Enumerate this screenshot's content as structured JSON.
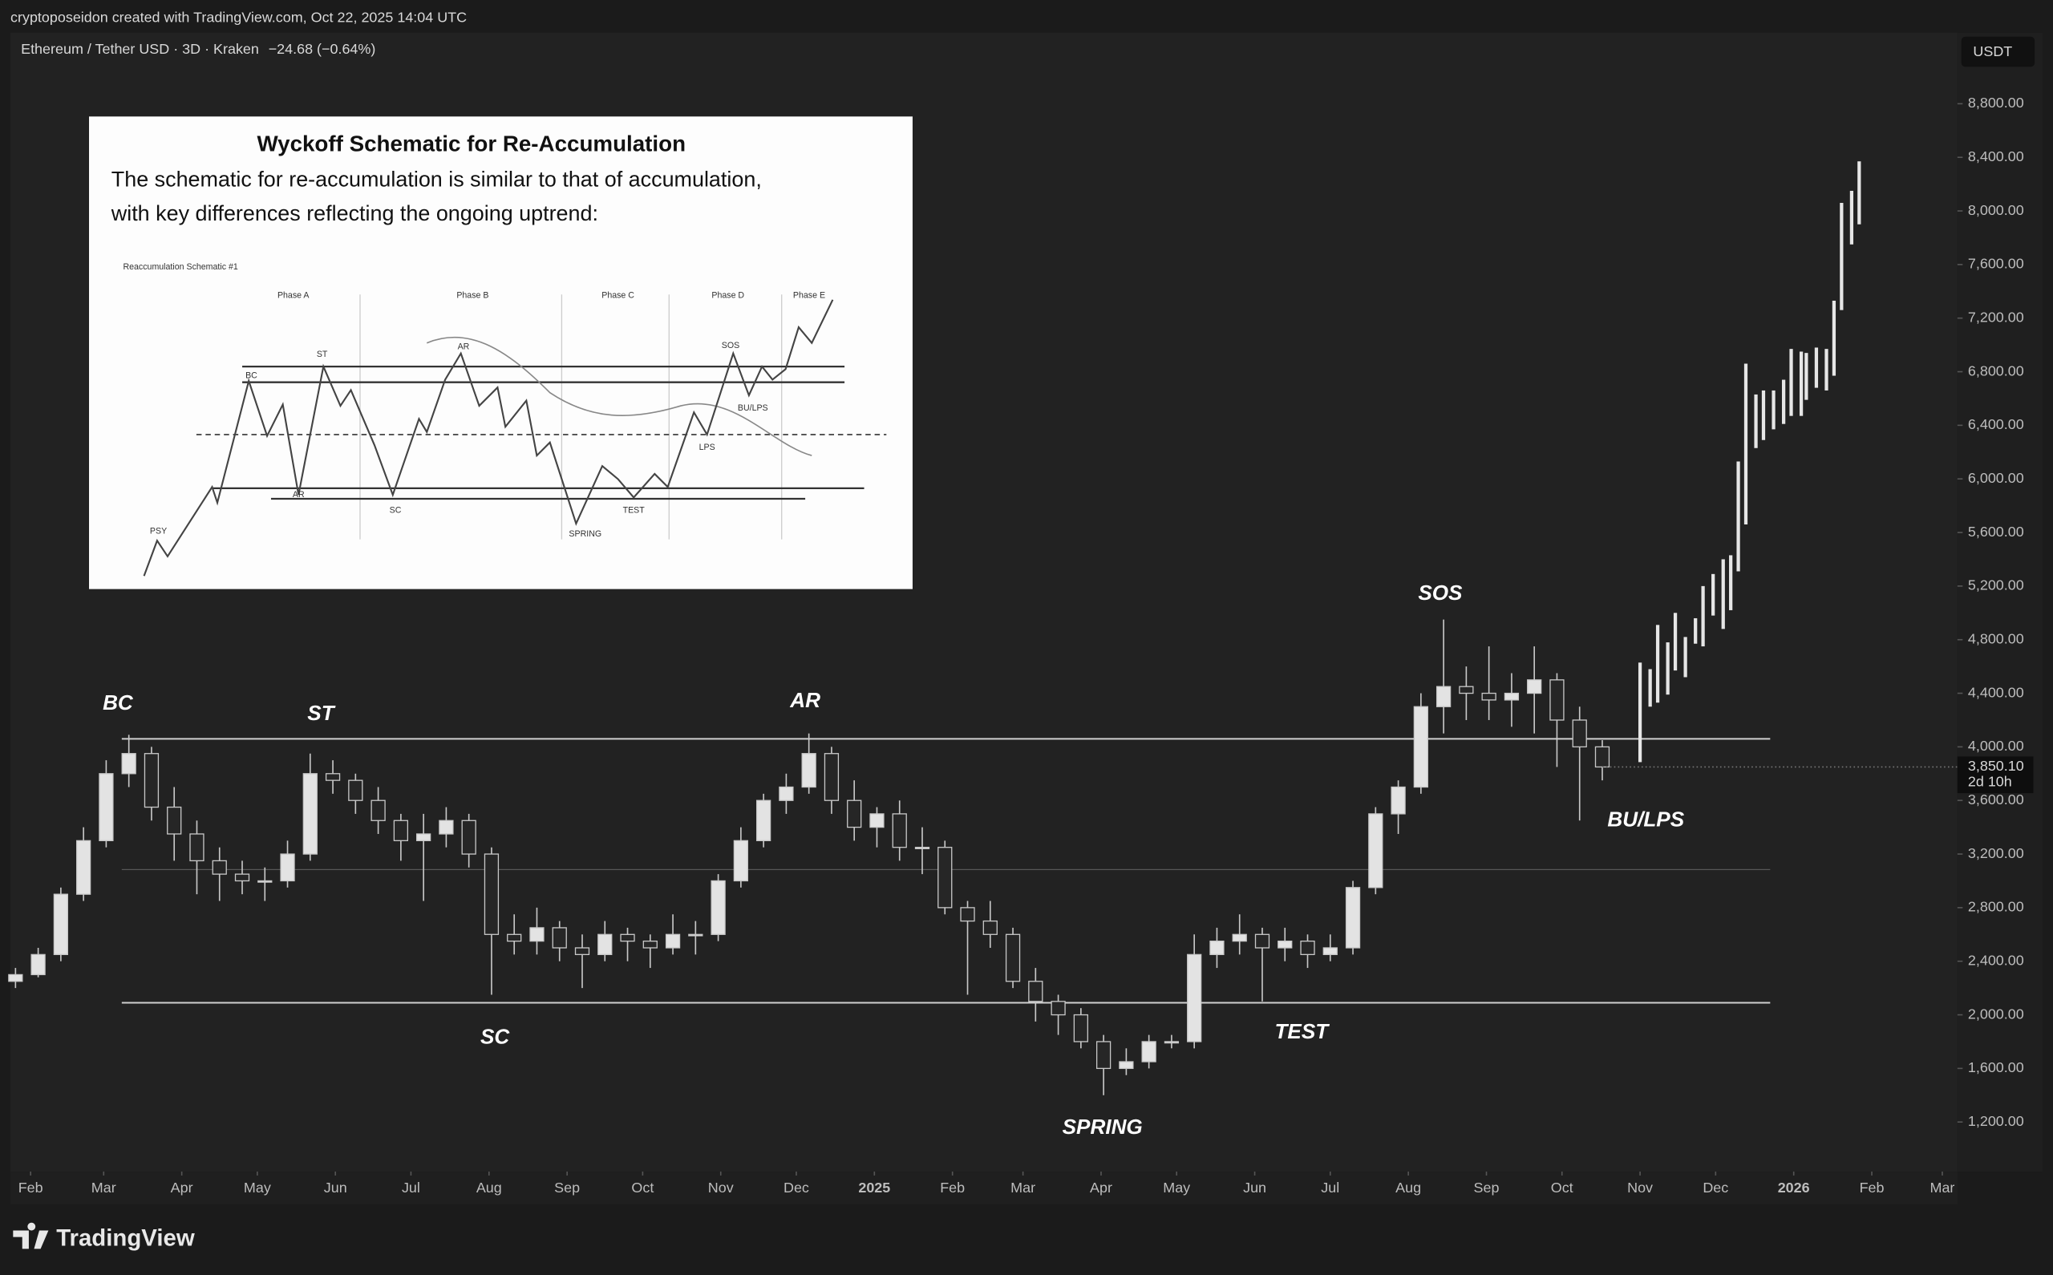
{
  "header": {
    "credit": "cryptoposeidon created with TradingView.com, Oct 22, 2025 14:04 UTC"
  },
  "symbol": {
    "name": "Ethereum / Tether USD · 3D · Kraken",
    "change": "−24.68 (−0.64%)",
    "currency": "USDT"
  },
  "chart_data": {
    "type": "candlestick",
    "x": [
      -6,
      3,
      12,
      21,
      30,
      39,
      48,
      57,
      66,
      75,
      84,
      93,
      102,
      111,
      120,
      129,
      138,
      147,
      156,
      165,
      174,
      183,
      192,
      201,
      210,
      219,
      228,
      237,
      246,
      255,
      264,
      273,
      282,
      291,
      300,
      309,
      318,
      327,
      336,
      345,
      354,
      363,
      372,
      381,
      390,
      399,
      408,
      417,
      426,
      435,
      444,
      453,
      462,
      471,
      480,
      489,
      498,
      507,
      516,
      525,
      534,
      543,
      552,
      561,
      570,
      579,
      588,
      597,
      606,
      615,
      624
    ],
    "open": [
      2250,
      2300,
      2450,
      2900,
      3300,
      3800,
      3950,
      3550,
      3350,
      3150,
      3050,
      3000,
      3000,
      3200,
      3800,
      3750,
      3600,
      3450,
      3300,
      3350,
      3450,
      3200,
      2600,
      2550,
      2650,
      2500,
      2450,
      2600,
      2550,
      2500,
      2600,
      2600,
      3000,
      3300,
      3600,
      3700,
      3950,
      3600,
      3400,
      3500,
      3250,
      3250,
      2800,
      2700,
      2600,
      2250,
      2100,
      2000,
      1800,
      1600,
      1650,
      1800,
      1800,
      2450,
      2550,
      2600,
      2500,
      2550,
      2450,
      2500,
      2950,
      3500,
      3700,
      4300,
      4450,
      4400,
      4350,
      4400,
      4500,
      4200,
      4000
    ],
    "high": [
      2350,
      2500,
      2950,
      3400,
      3900,
      4090,
      4000,
      3700,
      3450,
      3250,
      3150,
      3100,
      3300,
      3950,
      3900,
      3800,
      3700,
      3500,
      3500,
      3550,
      3500,
      3250,
      2750,
      2800,
      2700,
      2600,
      2700,
      2650,
      2600,
      2750,
      2700,
      3050,
      3400,
      3650,
      3800,
      4100,
      4000,
      3750,
      3550,
      3600,
      3400,
      3300,
      2850,
      2850,
      2650,
      2350,
      2150,
      2050,
      1850,
      1750,
      1850,
      1850,
      2600,
      2650,
      2750,
      2650,
      2650,
      2600,
      2600,
      3000,
      3550,
      3750,
      4400,
      4950,
      4600,
      4750,
      4550,
      4750,
      4550,
      4300,
      4050
    ],
    "low": [
      2200,
      2280,
      2400,
      2850,
      3250,
      3700,
      3450,
      3150,
      2900,
      2850,
      2900,
      2850,
      2950,
      3150,
      3650,
      3500,
      3350,
      3150,
      2850,
      3250,
      3100,
      2150,
      2450,
      2450,
      2400,
      2200,
      2400,
      2400,
      2350,
      2450,
      2450,
      2550,
      2950,
      3250,
      3500,
      3650,
      3500,
      3300,
      3250,
      3150,
      3050,
      2750,
      2150,
      2500,
      2200,
      1950,
      1850,
      1750,
      1400,
      1550,
      1600,
      1750,
      1750,
      2350,
      2450,
      2100,
      2400,
      2350,
      2400,
      2450,
      2900,
      3350,
      3650,
      4100,
      4200,
      4200,
      4150,
      4100,
      3850,
      3450,
      3750
    ],
    "close": [
      2300,
      2450,
      2900,
      3300,
      3800,
      3950,
      3550,
      3350,
      3150,
      3050,
      3000,
      3000,
      3200,
      3800,
      3750,
      3600,
      3450,
      3300,
      3350,
      3450,
      3200,
      2600,
      2550,
      2650,
      2500,
      2450,
      2600,
      2550,
      2500,
      2600,
      2600,
      3000,
      3300,
      3600,
      3700,
      3950,
      3600,
      3400,
      3500,
      3250,
      3250,
      2800,
      2700,
      2600,
      2250,
      2100,
      2000,
      1800,
      1600,
      1650,
      1800,
      1800,
      2450,
      2550,
      2600,
      2500,
      2550,
      2450,
      2500,
      2950,
      3500,
      3700,
      4300,
      4450,
      4400,
      4350,
      4400,
      4500,
      4200,
      4000,
      3850
    ],
    "up_color": "#e3e3e3",
    "down_color": "#262626",
    "outline_color": "#c8c8c8",
    "projection": {
      "x": [
        639,
        643,
        646,
        650,
        653,
        657,
        661,
        664,
        668,
        672,
        675,
        678,
        681,
        685,
        688,
        692,
        696,
        699,
        703,
        705,
        709,
        713,
        716,
        719,
        723,
        726
      ],
      "low": [
        3886,
        4300,
        4330,
        4390,
        4570,
        4520,
        4770,
        4750,
        4980,
        4880,
        5020,
        5310,
        5660,
        6230,
        6290,
        6370,
        6410,
        6470,
        6470,
        6590,
        6680,
        6660,
        6770,
        7260,
        7750,
        7900
      ],
      "high": [
        4629,
        4580,
        4910,
        4780,
        5000,
        4820,
        4960,
        5200,
        5290,
        5400,
        5430,
        6130,
        6860,
        6630,
        6660,
        6660,
        6740,
        6970,
        6950,
        6940,
        6980,
        6970,
        7330,
        8060,
        8150,
        8370
      ],
      "color": "#e6e6e6"
    },
    "levels": [
      4060,
      3085,
      2090
    ],
    "level_color": "#d0d0d0",
    "annotations": [
      "BC",
      "ST",
      "AR",
      "SC",
      "SPRING",
      "TEST",
      "SOS",
      "BU/LPS"
    ],
    "last_price": "3,850.10",
    "countdown": "2d 10h",
    "xlim": [
      -8,
      765
    ],
    "ylim": [
      830,
      9330
    ],
    "xticks": [
      {
        "value": 0,
        "label": "Feb"
      },
      {
        "value": 29,
        "label": "Mar"
      },
      {
        "value": 60,
        "label": "Apr"
      },
      {
        "value": 90,
        "label": "May"
      },
      {
        "value": 121,
        "label": "Jun"
      },
      {
        "value": 151,
        "label": "Jul"
      },
      {
        "value": 182,
        "label": "Aug"
      },
      {
        "value": 213,
        "label": "Sep"
      },
      {
        "value": 243,
        "label": "Oct"
      },
      {
        "value": 274,
        "label": "Nov"
      },
      {
        "value": 304,
        "label": "Dec"
      },
      {
        "value": 335,
        "label": "2025"
      },
      {
        "value": 366,
        "label": "Feb"
      },
      {
        "value": 394,
        "label": "Mar"
      },
      {
        "value": 425,
        "label": "Apr"
      },
      {
        "value": 455,
        "label": "May"
      },
      {
        "value": 486,
        "label": "Jun"
      },
      {
        "value": 516,
        "label": "Jul"
      },
      {
        "value": 547,
        "label": "Aug"
      },
      {
        "value": 578,
        "label": "Sep"
      },
      {
        "value": 608,
        "label": "Oct"
      },
      {
        "value": 639,
        "label": "Nov"
      },
      {
        "value": 669,
        "label": "Dec"
      },
      {
        "value": 700,
        "label": "2026"
      },
      {
        "value": 731,
        "label": "Feb"
      },
      {
        "value": 759,
        "label": "Mar"
      }
    ],
    "yticks": [
      {
        "value": 1200,
        "label": "1,200.00"
      },
      {
        "value": 1600,
        "label": "1,600.00"
      },
      {
        "value": 2000,
        "label": "2,000.00"
      },
      {
        "value": 2400,
        "label": "2,400.00"
      },
      {
        "value": 2800,
        "label": "2,800.00"
      },
      {
        "value": 3200,
        "label": "3,200.00"
      },
      {
        "value": 3600,
        "label": "3,600.00"
      },
      {
        "value": 4000,
        "label": "4,000.00"
      },
      {
        "value": 4400,
        "label": "4,400.00"
      },
      {
        "value": 4800,
        "label": "4,800.00"
      },
      {
        "value": 5200,
        "label": "5,200.00"
      },
      {
        "value": 5600,
        "label": "5,600.00"
      },
      {
        "value": 6000,
        "label": "6,000.00"
      },
      {
        "value": 6400,
        "label": "6,400.00"
      },
      {
        "value": 6800,
        "label": "6,800.00"
      },
      {
        "value": 7200,
        "label": "7,200.00"
      },
      {
        "value": 7600,
        "label": "7,600.00"
      },
      {
        "value": 8000,
        "label": "8,000.00"
      },
      {
        "value": 8400,
        "label": "8,400.00"
      },
      {
        "value": 8800,
        "label": "8,800.00"
      }
    ]
  },
  "inset": {
    "title": "Wyckoff Schematic for Re-Accumulation",
    "text": [
      "The schematic for re-accumulation is similar to that of accumulation,",
      "with key differences reflecting the ongoing uptrend:"
    ],
    "schematic_title": "Reaccumulation Schematic #1",
    "phases": [
      "Phase A",
      "Phase B",
      "Phase C",
      "Phase D",
      "Phase E"
    ],
    "labels": [
      "PSY",
      "BC",
      "ST",
      "AR",
      "SC",
      "AR",
      "SPRING",
      "TEST",
      "SOS",
      "LPS",
      "BU/LPS"
    ]
  },
  "footer": {
    "brand": "TradingView"
  }
}
